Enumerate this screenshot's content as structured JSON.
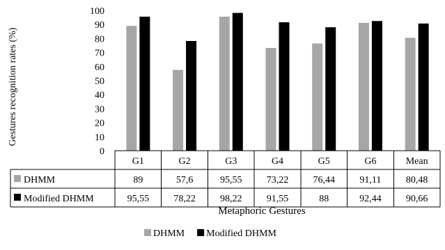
{
  "chart_data": {
    "type": "bar",
    "categories": [
      "G1",
      "G2",
      "G3",
      "G4",
      "G5",
      "G6",
      "Mean"
    ],
    "series": [
      {
        "name": "DHMM",
        "values": [
          89,
          57.6,
          95.55,
          73.22,
          76.44,
          91.11,
          80.48
        ],
        "labels": [
          "89",
          "57,6",
          "95,55",
          "73,22",
          "76,44",
          "91,11",
          "80,48"
        ],
        "color": "#a6a6a6"
      },
      {
        "name": "Modified DHMM",
        "values": [
          95.55,
          78.22,
          98.22,
          91.55,
          88,
          92.44,
          90.66
        ],
        "labels": [
          "95,55",
          "78,22",
          "98,22",
          "91,55",
          "88",
          "92,44",
          "90,66"
        ],
        "color": "#000000"
      }
    ],
    "ylim": [
      0,
      100
    ],
    "yticks": [
      0,
      10,
      20,
      30,
      40,
      50,
      60,
      70,
      80,
      90,
      100
    ],
    "ylabel": "Gestures recognition rates (%)",
    "xlabel": "Metaphoric Gestures",
    "data_table": true,
    "legend": "bottom"
  }
}
